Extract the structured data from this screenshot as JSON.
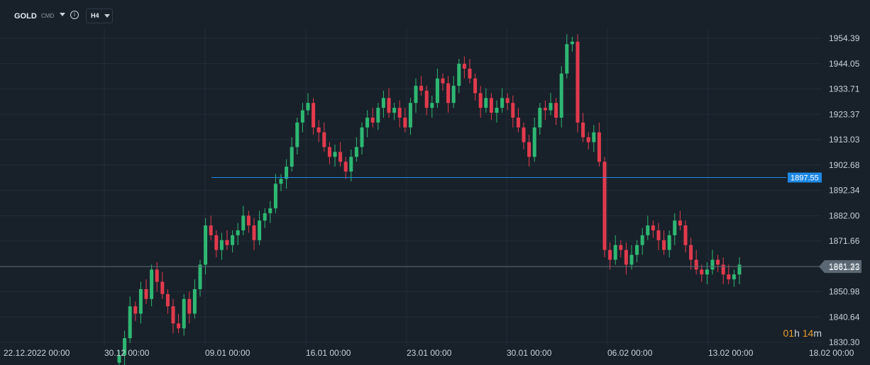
{
  "toolbar": {
    "symbol": "GOLD",
    "symbol_type": "CMD",
    "timeframe": "H4",
    "info_icon": "info-icon"
  },
  "countdown": {
    "hours": "01",
    "h": "h",
    "minutes": "14",
    "m": "m"
  },
  "colors": {
    "up": "#2eb873",
    "down": "#e23a4d",
    "grid": "#222d38",
    "alert": "#1e88e5",
    "price_line": "#5b6873",
    "price_label_bg": "#5b6873"
  },
  "chart_data": {
    "type": "candlestick",
    "ylim": [
      1830.3,
      1960
    ],
    "y_ticks": [
      "1954.39",
      "1944.05",
      "1933.71",
      "1923.37",
      "1913.03",
      "1902.68",
      "1892.34",
      "1882.00",
      "1871.66",
      "1861.32",
      "1850.98",
      "1840.64",
      "1830.30"
    ],
    "x_ticks": [
      "22.12.2022  00:00",
      "30.12  00:00",
      "09.01  00:00",
      "16.01  00:00",
      "23.01  00:00",
      "30.01  00:00",
      "06.02  00:00",
      "13.02  00:00",
      "18.02  00:00"
    ],
    "alert_level": 1897.55,
    "alert_label": "1897.55",
    "current_price": 1861.23,
    "current_label": "1861.23",
    "closes": [
      1825,
      1832,
      1845,
      1842,
      1852,
      1848,
      1860,
      1855,
      1850,
      1845,
      1838,
      1836,
      1848,
      1842,
      1852,
      1862,
      1878,
      1874,
      1868,
      1872,
      1870,
      1874,
      1876,
      1882,
      1878,
      1872,
      1880,
      1883,
      1885,
      1895,
      1897,
      1902,
      1910,
      1920,
      1925,
      1928,
      1918,
      1916,
      1910,
      1906,
      1908,
      1904,
      1900,
      1906,
      1910,
      1918,
      1922,
      1920,
      1926,
      1930,
      1924,
      1926,
      1922,
      1918,
      1928,
      1935,
      1933,
      1926,
      1928,
      1938,
      1936,
      1928,
      1935,
      1944,
      1942,
      1938,
      1932,
      1926,
      1930,
      1924,
      1926,
      1930,
      1928,
      1922,
      1918,
      1912,
      1906,
      1918,
      1926,
      1925,
      1928,
      1922,
      1940,
      1952,
      1953,
      1920,
      1914,
      1912,
      1916,
      1904,
      1868,
      1864,
      1870,
      1868,
      1862,
      1866,
      1870,
      1874,
      1878,
      1876,
      1872,
      1868,
      1874,
      1880,
      1878,
      1870,
      1864,
      1860,
      1858,
      1860,
      1864,
      1862,
      1858,
      1856,
      1858,
      1862
    ]
  }
}
